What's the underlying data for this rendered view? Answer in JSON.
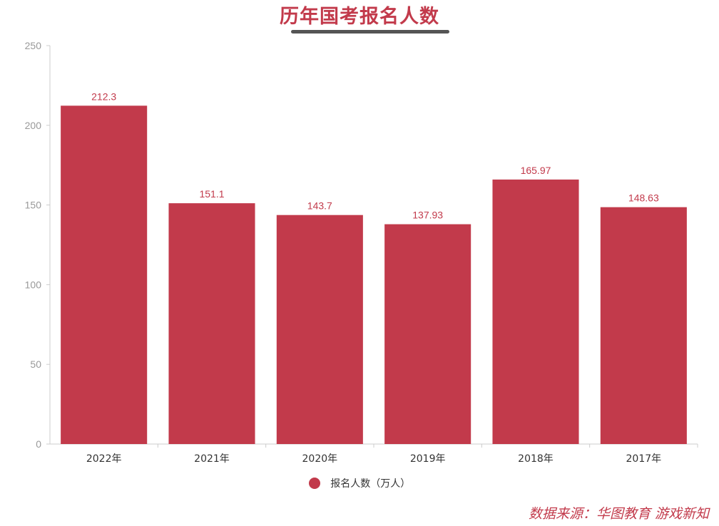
{
  "title": "历年国考报名人数",
  "source": "数据来源：华图教育 游戏新知",
  "colors": {
    "bar": "#c23a4b",
    "axis": "#cccccc",
    "tick_text": "#999999",
    "label_text": "#333333"
  },
  "chart_data": {
    "type": "bar",
    "title": "历年国考报名人数",
    "categories": [
      "2022年",
      "2021年",
      "2020年",
      "2019年",
      "2018年",
      "2017年"
    ],
    "series": [
      {
        "name": "报名人数（万人）",
        "values": [
          212.3,
          151.1,
          143.7,
          137.93,
          165.97,
          148.63
        ]
      }
    ],
    "value_labels": [
      "212.3",
      "151.1",
      "143.7",
      "137.93",
      "165.97",
      "148.63"
    ],
    "ylim": [
      0,
      250
    ],
    "yticks": [
      0,
      50,
      100,
      150,
      200,
      250
    ],
    "xlabel": "",
    "ylabel": "",
    "grid": false,
    "legend": "bottom-center"
  }
}
